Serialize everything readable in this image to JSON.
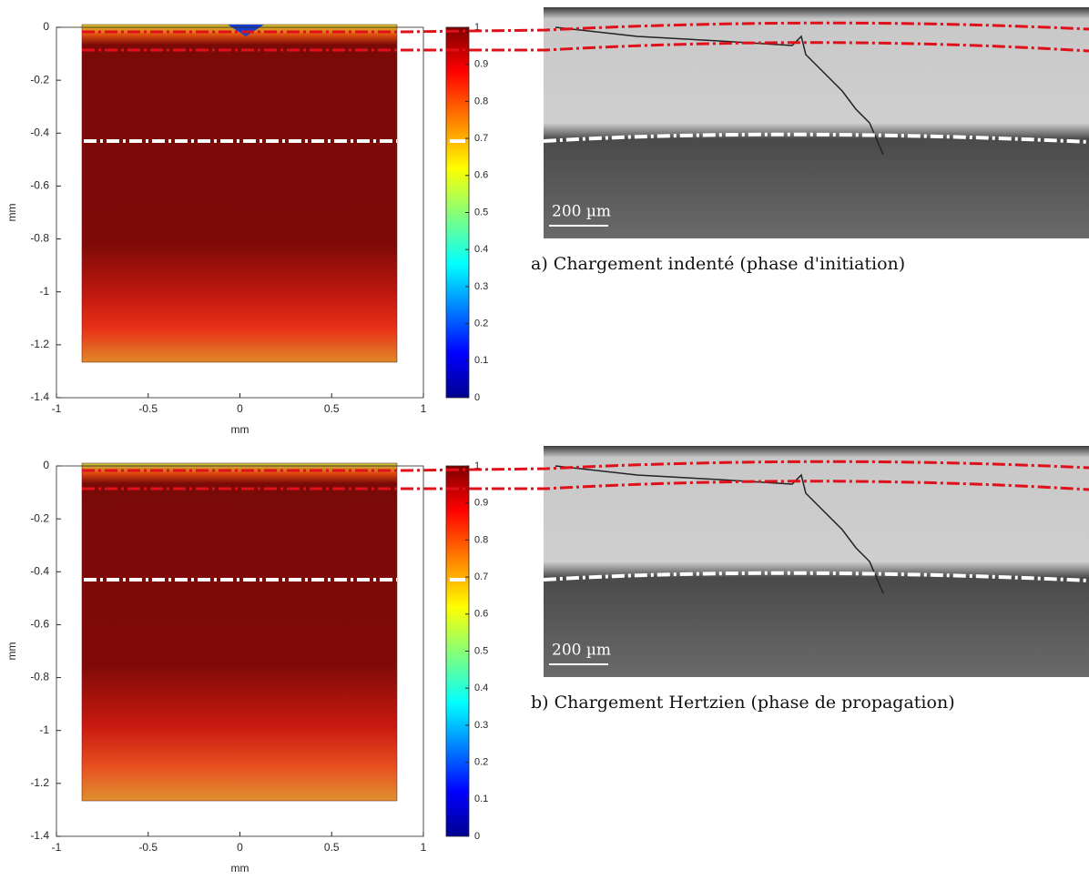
{
  "panels": [
    {
      "ylabel": "mm",
      "xlabel": "mm",
      "xlim": [
        -1,
        1
      ],
      "ylim": [
        -1.4,
        0
      ],
      "xticks": [
        -1,
        -0.5,
        0,
        0.5,
        1
      ],
      "yticks": [
        0,
        -0.2,
        -0.4,
        -0.6,
        -0.8,
        -1,
        -1.2,
        -1.4
      ],
      "clim": [
        0,
        1
      ],
      "cticks": [
        0,
        0.1,
        0.2,
        0.3,
        0.4,
        0.5,
        0.6,
        0.7,
        0.8,
        0.9,
        1
      ],
      "scale_bar": "200 µm",
      "caption": "a) Chargement indenté (phase d'initiation)"
    },
    {
      "ylabel": "mm",
      "xlabel": "mm",
      "xlim": [
        -1,
        1
      ],
      "ylim": [
        -1.4,
        0
      ],
      "xticks": [
        -1,
        -0.5,
        0,
        0.5,
        1
      ],
      "yticks": [
        0,
        -0.2,
        -0.4,
        -0.6,
        -0.8,
        -1,
        -1.2,
        -1.4
      ],
      "clim": [
        0,
        1
      ],
      "cticks": [
        0,
        0.1,
        0.2,
        0.3,
        0.4,
        0.5,
        0.6,
        0.7,
        0.8,
        0.9,
        1
      ],
      "scale_bar": "200 µm",
      "caption": "b) Chargement Hertzien (phase de propagation)"
    }
  ]
}
